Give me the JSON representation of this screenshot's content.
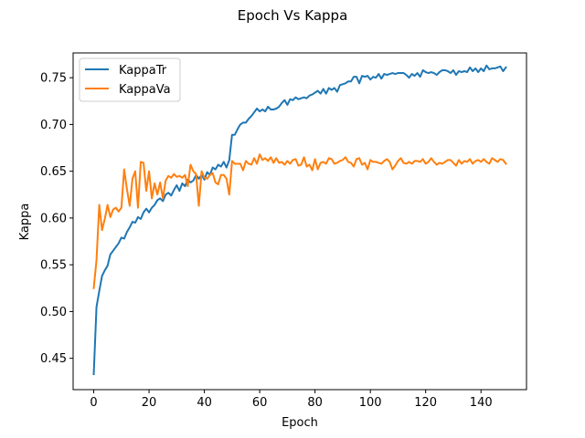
{
  "chart_data": {
    "type": "line",
    "title": "Epoch Vs Kappa",
    "xlabel": "Epoch",
    "ylabel": "Kappa",
    "xlim": [
      -7.45,
      156.45
    ],
    "ylim": [
      0.4165,
      0.7765
    ],
    "xticks": [
      0,
      20,
      40,
      60,
      80,
      100,
      120,
      140
    ],
    "xtick_labels": [
      "0",
      "20",
      "40",
      "60",
      "80",
      "100",
      "120",
      "140"
    ],
    "yticks": [
      0.45,
      0.5,
      0.55,
      0.6,
      0.65,
      0.7,
      0.75
    ],
    "ytick_labels": [
      "0.45",
      "0.50",
      "0.55",
      "0.60",
      "0.65",
      "0.70",
      "0.75"
    ],
    "grid": false,
    "legend_position": "top-left",
    "x": [
      0,
      1,
      2,
      3,
      4,
      5,
      6,
      7,
      8,
      9,
      10,
      11,
      12,
      13,
      14,
      15,
      16,
      17,
      18,
      19,
      20,
      21,
      22,
      23,
      24,
      25,
      26,
      27,
      28,
      29,
      30,
      31,
      32,
      33,
      34,
      35,
      36,
      37,
      38,
      39,
      40,
      41,
      42,
      43,
      44,
      45,
      46,
      47,
      48,
      49,
      50,
      51,
      52,
      53,
      54,
      55,
      56,
      57,
      58,
      59,
      60,
      61,
      62,
      63,
      64,
      65,
      66,
      67,
      68,
      69,
      70,
      71,
      72,
      73,
      74,
      75,
      76,
      77,
      78,
      79,
      80,
      81,
      82,
      83,
      84,
      85,
      86,
      87,
      88,
      89,
      90,
      91,
      92,
      93,
      94,
      95,
      96,
      97,
      98,
      99,
      100,
      101,
      102,
      103,
      104,
      105,
      106,
      107,
      108,
      109,
      110,
      111,
      112,
      113,
      114,
      115,
      116,
      117,
      118,
      119,
      120,
      121,
      122,
      123,
      124,
      125,
      126,
      127,
      128,
      129,
      130,
      131,
      132,
      133,
      134,
      135,
      136,
      137,
      138,
      139,
      140,
      141,
      142,
      143,
      144,
      145,
      146,
      147,
      148,
      149
    ],
    "series": [
      {
        "name": "KappaTr",
        "color": "#1f77b4",
        "values": [
          0.433,
          0.505,
          0.522,
          0.538,
          0.544,
          0.549,
          0.561,
          0.565,
          0.569,
          0.573,
          0.579,
          0.578,
          0.585,
          0.59,
          0.596,
          0.595,
          0.601,
          0.599,
          0.606,
          0.61,
          0.606,
          0.611,
          0.614,
          0.619,
          0.621,
          0.618,
          0.625,
          0.627,
          0.624,
          0.63,
          0.635,
          0.629,
          0.637,
          0.634,
          0.641,
          0.638,
          0.64,
          0.646,
          0.642,
          0.646,
          0.641,
          0.649,
          0.646,
          0.654,
          0.652,
          0.657,
          0.655,
          0.66,
          0.654,
          0.662,
          0.689,
          0.689,
          0.695,
          0.7,
          0.702,
          0.702,
          0.706,
          0.709,
          0.713,
          0.717,
          0.714,
          0.716,
          0.714,
          0.719,
          0.716,
          0.716,
          0.717,
          0.719,
          0.723,
          0.726,
          0.721,
          0.727,
          0.726,
          0.729,
          0.727,
          0.728,
          0.729,
          0.728,
          0.731,
          0.732,
          0.734,
          0.736,
          0.733,
          0.738,
          0.733,
          0.739,
          0.737,
          0.739,
          0.735,
          0.742,
          0.743,
          0.744,
          0.746,
          0.746,
          0.751,
          0.751,
          0.744,
          0.752,
          0.751,
          0.752,
          0.748,
          0.751,
          0.75,
          0.754,
          0.749,
          0.754,
          0.753,
          0.754,
          0.755,
          0.754,
          0.755,
          0.755,
          0.755,
          0.753,
          0.75,
          0.754,
          0.752,
          0.755,
          0.751,
          0.758,
          0.756,
          0.755,
          0.756,
          0.755,
          0.753,
          0.756,
          0.758,
          0.758,
          0.757,
          0.755,
          0.758,
          0.753,
          0.757,
          0.756,
          0.757,
          0.756,
          0.761,
          0.757,
          0.76,
          0.756,
          0.76,
          0.757,
          0.763,
          0.759,
          0.76,
          0.76,
          0.761,
          0.762,
          0.757,
          0.761
        ]
      },
      {
        "name": "KappaVa",
        "color": "#ff7f0e",
        "values": [
          0.525,
          0.555,
          0.614,
          0.587,
          0.599,
          0.614,
          0.601,
          0.609,
          0.611,
          0.607,
          0.611,
          0.652,
          0.631,
          0.613,
          0.642,
          0.65,
          0.611,
          0.66,
          0.659,
          0.629,
          0.65,
          0.621,
          0.637,
          0.625,
          0.638,
          0.621,
          0.64,
          0.645,
          0.643,
          0.647,
          0.644,
          0.645,
          0.643,
          0.646,
          0.634,
          0.657,
          0.65,
          0.647,
          0.613,
          0.65,
          0.643,
          0.642,
          0.646,
          0.648,
          0.638,
          0.636,
          0.646,
          0.646,
          0.642,
          0.625,
          0.661,
          0.658,
          0.658,
          0.658,
          0.651,
          0.661,
          0.658,
          0.657,
          0.664,
          0.658,
          0.668,
          0.662,
          0.664,
          0.661,
          0.665,
          0.659,
          0.664,
          0.659,
          0.66,
          0.657,
          0.661,
          0.658,
          0.662,
          0.663,
          0.656,
          0.657,
          0.665,
          0.655,
          0.657,
          0.651,
          0.663,
          0.652,
          0.659,
          0.66,
          0.658,
          0.664,
          0.663,
          0.658,
          0.659,
          0.661,
          0.662,
          0.665,
          0.66,
          0.659,
          0.655,
          0.663,
          0.664,
          0.657,
          0.659,
          0.652,
          0.662,
          0.66,
          0.66,
          0.659,
          0.658,
          0.661,
          0.663,
          0.66,
          0.652,
          0.656,
          0.661,
          0.664,
          0.659,
          0.658,
          0.66,
          0.658,
          0.661,
          0.661,
          0.66,
          0.663,
          0.658,
          0.66,
          0.664,
          0.66,
          0.657,
          0.659,
          0.658,
          0.66,
          0.662,
          0.662,
          0.659,
          0.656,
          0.662,
          0.658,
          0.661,
          0.66,
          0.663,
          0.658,
          0.661,
          0.662,
          0.66,
          0.663,
          0.66,
          0.658,
          0.664,
          0.662,
          0.66,
          0.663,
          0.662,
          0.658
        ]
      }
    ]
  }
}
